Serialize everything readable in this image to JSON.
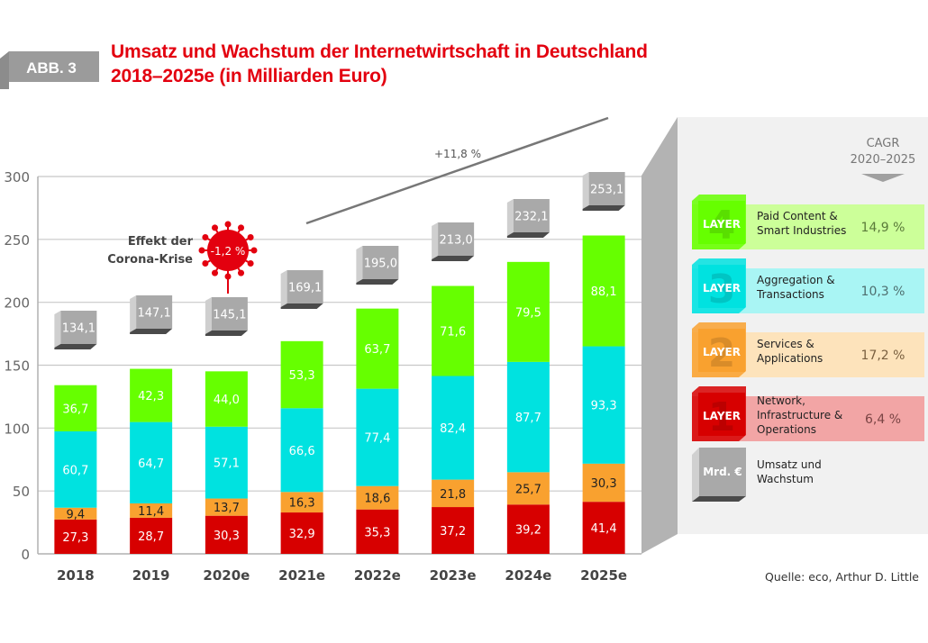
{
  "figure": {
    "badge": "ABB. 3",
    "title_line1": "Umsatz und Wachstum der Internetwirtschaft in Deutschland",
    "title_line2": "2018–2025e (in Milliarden Euro)",
    "source": "Quelle: eco, Arthur D. Little",
    "corona_label_line1": "Effekt der",
    "corona_label_line2": "Corona-Krise",
    "corona_value": "-1,2 %",
    "trend_label": "+11,8 %"
  },
  "colors": {
    "layer1": "#d70000",
    "layer2": "#f9a12f",
    "layer3": "#00e2e0",
    "layer4": "#66ff00",
    "accent": "#e3000f",
    "total_box": "#a9a9a9"
  },
  "chart_data": {
    "type": "bar",
    "stacked": true,
    "title": "Umsatz und Wachstum der Internetwirtschaft in Deutschland 2018–2025e (in Milliarden Euro)",
    "xlabel": "",
    "ylabel": "",
    "ylim": [
      0,
      300
    ],
    "yticks": [
      0,
      50,
      100,
      150,
      200,
      250,
      300
    ],
    "grid": true,
    "legend_position": "right",
    "categories": [
      "2018",
      "2019",
      "2020e",
      "2021e",
      "2022e",
      "2023e",
      "2024e",
      "2025e"
    ],
    "series": [
      {
        "name": "Network, Infrastructure & Operations",
        "layer": "1",
        "values": [
          27.3,
          28.7,
          30.3,
          32.9,
          35.3,
          37.2,
          39.2,
          41.4
        ],
        "labels": [
          "27,3",
          "28,7",
          "30,3",
          "32,9",
          "35,3",
          "37,2",
          "39,2",
          "41,4"
        ]
      },
      {
        "name": "Services & Applications",
        "layer": "2",
        "values": [
          9.4,
          11.4,
          13.7,
          16.3,
          18.6,
          21.8,
          25.7,
          30.3
        ],
        "labels": [
          "9,4",
          "11,4",
          "13,7",
          "16,3",
          "18,6",
          "21,8",
          "25,7",
          "30,3"
        ]
      },
      {
        "name": "Aggregation & Transactions",
        "layer": "3",
        "values": [
          60.7,
          64.7,
          57.1,
          66.6,
          77.4,
          82.4,
          87.7,
          93.3
        ],
        "labels": [
          "60,7",
          "64,7",
          "57,1",
          "66,6",
          "77,4",
          "82,4",
          "87,7",
          "93,3"
        ]
      },
      {
        "name": "Paid Content & Smart Industries",
        "layer": "4",
        "values": [
          36.7,
          42.3,
          44.0,
          53.3,
          63.7,
          71.6,
          79.5,
          88.1
        ],
        "labels": [
          "36,7",
          "42,3",
          "44,0",
          "53,3",
          "63,7",
          "71,6",
          "79,5",
          "88,1"
        ]
      }
    ],
    "totals": [
      134.1,
      147.1,
      145.1,
      169.1,
      195.0,
      213.0,
      232.1,
      253.1
    ],
    "total_labels": [
      "134,1",
      "147,1",
      "145,1",
      "169,1",
      "195,0",
      "213,0",
      "232,1",
      "253,1"
    ],
    "annotations": [
      {
        "text": "Effekt der Corona-Krise -1,2 %",
        "category": "2020e"
      },
      {
        "text": "+11,8 %",
        "type": "trend-line",
        "from": "2021e",
        "to": "2025e"
      }
    ]
  },
  "legend": {
    "header_line1": "CAGR",
    "header_line2": "2020–2025",
    "layer_word": "LAYER",
    "items": [
      {
        "number": "4",
        "line1": "Paid Content &",
        "line2": "Smart Industries",
        "line3": "",
        "cagr": "14,9 %"
      },
      {
        "number": "3",
        "line1": "Aggregation &",
        "line2": "Transactions",
        "line3": "",
        "cagr": "10,3 %"
      },
      {
        "number": "2",
        "line1": "Services &",
        "line2": "Applications",
        "line3": "",
        "cagr": "17,2 %"
      },
      {
        "number": "1",
        "line1": "Network,",
        "line2": "Infrastructure &",
        "line3": "Operations",
        "cagr": "6,4 %"
      }
    ],
    "total_item": {
      "box": "Mrd. €",
      "line1": "Umsatz und",
      "line2": "Wachstum"
    }
  }
}
